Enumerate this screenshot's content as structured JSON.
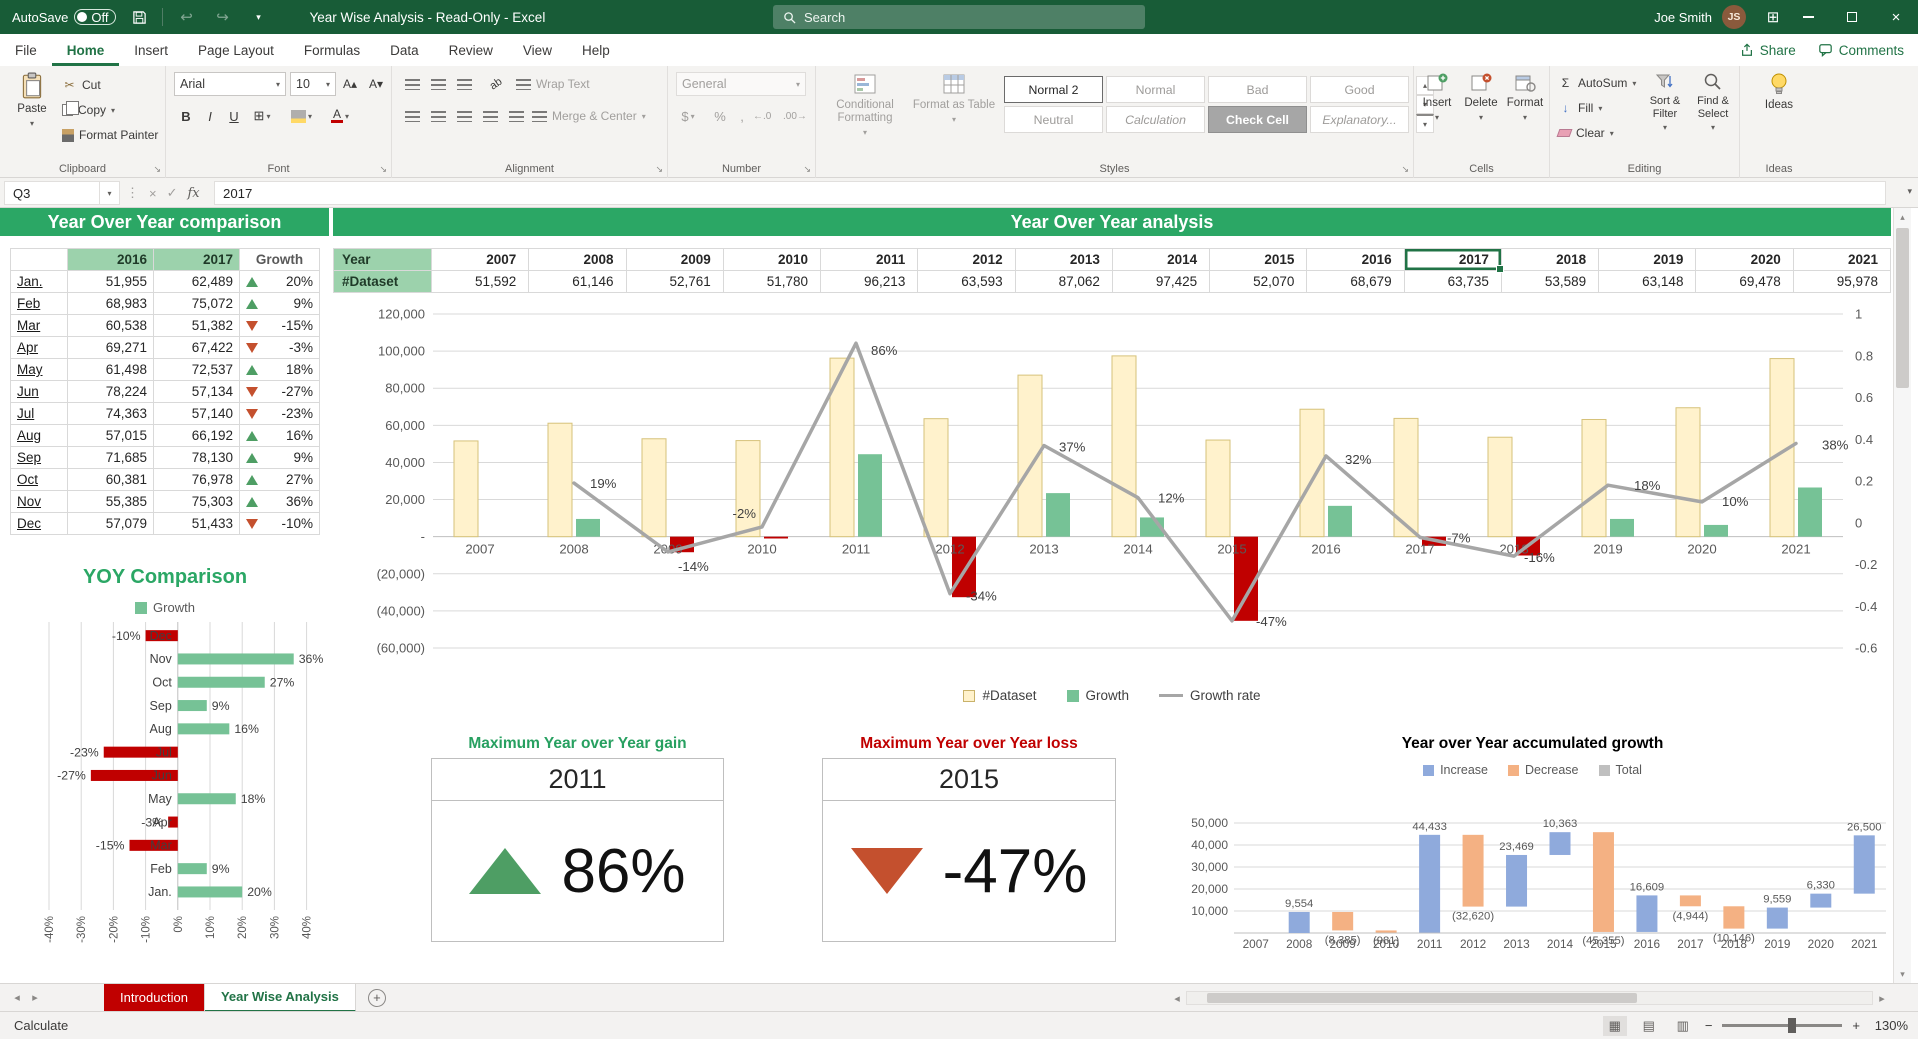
{
  "colors": {
    "titlebar_green": "#185C37",
    "excel_green": "#217346",
    "panel_header_green": "#2BA765",
    "table_header_green": "#9CD2AC",
    "dataset_bar": "#FFF2CC",
    "dataset_bar_border": "#D6C27A",
    "growth_positive": "#76C296",
    "growth_negative": "#C00000",
    "growth_rate_line": "#A6A6A6",
    "increase_blue": "#8FAADC",
    "decrease_orange": "#F4B183",
    "total_gray": "#BFBFBF",
    "up_triangle": "#4E9E64",
    "down_triangle": "#C4502E",
    "intro_tab_red": "#C00000"
  },
  "icons": {
    "undo": "↩",
    "redo": "↪",
    "chevron_down": "▾",
    "chevron_up": "▴",
    "close": "×",
    "dots_vertical": "⋮",
    "check": "✓",
    "cancel": "×",
    "fx": "fx",
    "sigma": "Σ",
    "scissors": "✂",
    "plus": "+",
    "minus": "−",
    "left_arrow": "◂",
    "right_arrow": "▸",
    "grid": "⊞",
    "dialog_launcher": "↘",
    "grow_font": "A▴",
    "shrink_font": "A▾",
    "dollar": "$",
    "percent": "%",
    "comma": ",",
    "inc_decimal": "←.0",
    "dec_decimal": ".00→",
    "fill_down": "↓",
    "normal_view": "▦",
    "page_layout_view": "▤",
    "page_break_view": "▥",
    "user_initials": "JS"
  },
  "titlebar": {
    "autosave_label": "AutoSave",
    "autosave_state": "Off",
    "title": "Year Wise Analysis  -  Read-Only  -  Excel",
    "search_placeholder": "Search",
    "user_name": "Joe Smith"
  },
  "ribbon_tabs": {
    "items": [
      {
        "label": "File"
      },
      {
        "label": "Home"
      },
      {
        "label": "Insert"
      },
      {
        "label": "Page Layout"
      },
      {
        "label": "Formulas"
      },
      {
        "label": "Data"
      },
      {
        "label": "Review"
      },
      {
        "label": "View"
      },
      {
        "label": "Help"
      }
    ],
    "active": "Home",
    "share_label": "Share",
    "comments_label": "Comments"
  },
  "ribbon": {
    "clipboard": {
      "label": "Clipboard",
      "paste": "Paste",
      "cut": "Cut",
      "copy": "Copy",
      "format_painter": "Format Painter"
    },
    "font": {
      "label": "Font",
      "family": "Arial",
      "size": "10",
      "bold": "B",
      "italic": "I",
      "underline": "U"
    },
    "alignment": {
      "label": "Alignment",
      "wrap_text": "Wrap Text",
      "merge_center": "Merge & Center"
    },
    "number": {
      "label": "Number",
      "format": "General"
    },
    "styles": {
      "label": "Styles",
      "conditional": "Conditional Formatting",
      "format_table": "Format as Table",
      "gallery": [
        "Normal 2",
        "Normal",
        "Bad",
        "Good",
        "Neutral",
        "Calculation",
        "Check Cell",
        "Explanatory..."
      ]
    },
    "cells": {
      "label": "Cells",
      "insert": "Insert",
      "delete": "Delete",
      "format": "Format"
    },
    "editing": {
      "label": "Editing",
      "autosum": "AutoSum",
      "fill": "Fill",
      "clear": "Clear",
      "sort_filter": "Sort & Filter",
      "find_select": "Find & Select"
    },
    "ideas": {
      "label": "Ideas",
      "button": "Ideas"
    }
  },
  "formula_bar": {
    "name_box": "Q3",
    "value": "2017"
  },
  "comparison": {
    "header": "Year Over Year comparison",
    "col_2016": "2016",
    "col_2017": "2017",
    "col_growth": "Growth",
    "rows": [
      {
        "month": "Jan.",
        "v2016": "51,955",
        "v2017": "62,489",
        "growth": "20%",
        "dir": "up"
      },
      {
        "month": "Feb",
        "v2016": "68,983",
        "v2017": "75,072",
        "growth": "9%",
        "dir": "up"
      },
      {
        "month": "Mar",
        "v2016": "60,538",
        "v2017": "51,382",
        "growth": "-15%",
        "dir": "down"
      },
      {
        "month": "Apr",
        "v2016": "69,271",
        "v2017": "67,422",
        "growth": "-3%",
        "dir": "down"
      },
      {
        "month": "May",
        "v2016": "61,498",
        "v2017": "72,537",
        "growth": "18%",
        "dir": "up"
      },
      {
        "month": "Jun",
        "v2016": "78,224",
        "v2017": "57,134",
        "growth": "-27%",
        "dir": "down"
      },
      {
        "month": "Jul",
        "v2016": "74,363",
        "v2017": "57,140",
        "growth": "-23%",
        "dir": "down"
      },
      {
        "month": "Aug",
        "v2016": "57,015",
        "v2017": "66,192",
        "growth": "16%",
        "dir": "up"
      },
      {
        "month": "Sep",
        "v2016": "71,685",
        "v2017": "78,130",
        "growth": "9%",
        "dir": "up"
      },
      {
        "month": "Oct",
        "v2016": "60,381",
        "v2017": "76,978",
        "growth": "27%",
        "dir": "up"
      },
      {
        "month": "Nov",
        "v2016": "55,385",
        "v2017": "75,303",
        "growth": "36%",
        "dir": "up"
      },
      {
        "month": "Dec",
        "v2016": "57,079",
        "v2017": "51,433",
        "growth": "-10%",
        "dir": "down"
      }
    ]
  },
  "analysis": {
    "header": "Year Over Year analysis",
    "year_label": "Year",
    "dataset_label": "#Dataset",
    "selected_year": "2017",
    "columns": [
      {
        "year": "2007",
        "value": "51,592"
      },
      {
        "year": "2008",
        "value": "61,146"
      },
      {
        "year": "2009",
        "value": "52,761"
      },
      {
        "year": "2010",
        "value": "51,780"
      },
      {
        "year": "2011",
        "value": "96,213"
      },
      {
        "year": "2012",
        "value": "63,593"
      },
      {
        "year": "2013",
        "value": "87,062"
      },
      {
        "year": "2014",
        "value": "97,425"
      },
      {
        "year": "2015",
        "value": "52,070"
      },
      {
        "year": "2016",
        "value": "68,679"
      },
      {
        "year": "2017",
        "value": "63,735"
      },
      {
        "year": "2018",
        "value": "53,589"
      },
      {
        "year": "2019",
        "value": "63,148"
      },
      {
        "year": "2020",
        "value": "69,478"
      },
      {
        "year": "2021",
        "value": "95,978"
      }
    ]
  },
  "gain_card": {
    "title": "Maximum Year over Year gain",
    "year": "2011",
    "value": "86%"
  },
  "loss_card": {
    "title": "Maximum Year over Year loss",
    "year": "2015",
    "value": "-47%"
  },
  "chart_data": [
    {
      "id": "yoy-comparison-bar",
      "type": "bar",
      "orientation": "horizontal",
      "title": "YOY Comparison",
      "legend": [
        "Growth"
      ],
      "categories": [
        "Jan.",
        "Feb",
        "Mar",
        "Apr",
        "May",
        "Jun",
        "Jul",
        "Aug",
        "Sep",
        "Oct",
        "Nov",
        "Dec"
      ],
      "values_pct": [
        20,
        9,
        -15,
        -3,
        18,
        -27,
        -23,
        16,
        9,
        27,
        36,
        -10
      ],
      "xlim": [
        -40,
        40
      ],
      "x_tick_labels": [
        "-40%",
        "-30%",
        "-20%",
        "-10%",
        "0%",
        "10%",
        "20%",
        "30%",
        "40%"
      ],
      "positive_color": "#76C296",
      "negative_color": "#C00000"
    },
    {
      "id": "yoy-analysis-combo",
      "type": "combo",
      "categories": [
        "2007",
        "2008",
        "2009",
        "2010",
        "2011",
        "2012",
        "2013",
        "2014",
        "2015",
        "2016",
        "2017",
        "2018",
        "2019",
        "2020",
        "2021"
      ],
      "series": [
        {
          "name": "#Dataset",
          "type": "bar",
          "axis": "left",
          "color": "#FFF2CC",
          "values": [
            51592,
            61146,
            52761,
            51780,
            96213,
            63593,
            87062,
            97425,
            52070,
            68679,
            63735,
            53589,
            63148,
            69478,
            95978
          ]
        },
        {
          "name": "Growth",
          "type": "bar",
          "axis": "left",
          "positive_color": "#76C296",
          "negative_color": "#C00000",
          "values": [
            null,
            9554,
            -8385,
            -981,
            44433,
            -32620,
            23469,
            10363,
            -45355,
            16609,
            -4944,
            -10146,
            9559,
            6330,
            26500
          ]
        },
        {
          "name": "Growth rate",
          "type": "line",
          "axis": "right",
          "color": "#A6A6A6",
          "values": [
            null,
            0.19,
            -0.14,
            -0.02,
            0.86,
            -0.34,
            0.37,
            0.12,
            -0.47,
            0.32,
            -0.07,
            -0.16,
            0.18,
            0.1,
            0.38
          ],
          "labels": [
            "",
            "19%",
            "-14%",
            "-2%",
            "86%",
            "-34%",
            "37%",
            "12%",
            "-47%",
            "32%",
            "-7%",
            "-16%",
            "18%",
            "10%",
            "38%"
          ]
        }
      ],
      "left_axis": {
        "min": -60000,
        "max": 120000,
        "step": 20000,
        "tick_labels": [
          "120,000",
          "100,000",
          "80,000",
          "60,000",
          "40,000",
          "20,000",
          "-",
          "(20,000)",
          "(40,000)",
          "(60,000)"
        ]
      },
      "right_axis": {
        "min": -0.6,
        "max": 1,
        "step": 0.2,
        "tick_labels": [
          "1",
          "0.8",
          "0.6",
          "0.4",
          "0.2",
          "0",
          "-0.2",
          "-0.4",
          "-0.6"
        ]
      },
      "grid": true,
      "legend_position": "bottom"
    },
    {
      "id": "accumulated-growth-waterfall",
      "type": "waterfall",
      "title": "Year over Year accumulated growth",
      "legend": [
        "Increase",
        "Decrease",
        "Total"
      ],
      "colors": {
        "increase": "#8FAADC",
        "decrease": "#F4B183",
        "total": "#BFBFBF"
      },
      "categories": [
        "2007",
        "2008",
        "2009",
        "2010",
        "2011",
        "2012",
        "2013",
        "2014",
        "2015",
        "2016",
        "2017",
        "2018",
        "2019",
        "2020",
        "2021"
      ],
      "deltas": [
        0,
        9554,
        -8385,
        -981,
        44433,
        -32620,
        23469,
        10363,
        -45355,
        16609,
        -4944,
        -10146,
        9559,
        6330,
        26500
      ],
      "labels": [
        "",
        "9,554",
        "(8,385)",
        "(981)",
        "44,433",
        "(32,620)",
        "23,469",
        "10,363",
        "(45,355)",
        "16,609",
        "(4,944)",
        "(10,146)",
        "9,559",
        "6,330",
        "26,500"
      ],
      "y_tick_labels": [
        "50,000",
        "40,000",
        "30,000",
        "20,000",
        "10,000"
      ],
      "y_max": 50000
    }
  ],
  "sheet_bar": {
    "tabs": [
      {
        "label": "Introduction",
        "color": "red"
      },
      {
        "label": "Year Wise Analysis",
        "active": true
      }
    ]
  },
  "status_bar": {
    "mode": "Calculate",
    "zoom": "130%"
  }
}
